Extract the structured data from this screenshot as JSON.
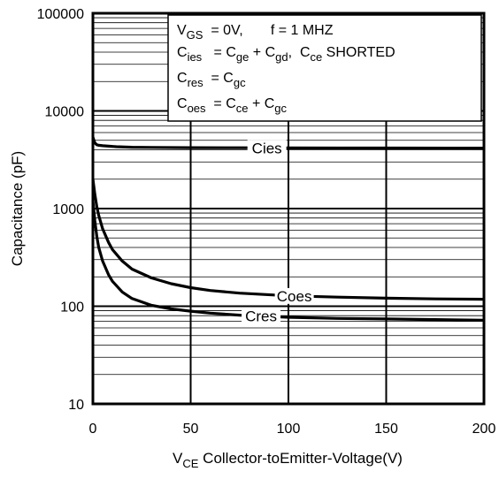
{
  "chart_data": {
    "type": "line",
    "title": "",
    "xlabel": {
      "main": "V",
      "sub": "CE",
      "rest": " Collector-toEmitter-Voltage(V)"
    },
    "ylabel": "Capacitance (pF)",
    "xlim": [
      0,
      200
    ],
    "ylim": [
      10,
      100000
    ],
    "yscale": "log",
    "grid": true,
    "x_ticks": [
      0,
      50,
      100,
      150,
      200
    ],
    "x_tick_labels": [
      "0",
      "50",
      "100",
      "150",
      "200"
    ],
    "y_ticks": [
      10,
      100,
      1000,
      10000,
      100000
    ],
    "y_tick_labels": [
      "10",
      "100",
      "1000",
      "10000",
      "100000"
    ],
    "legend_position": "top-right",
    "legend_box": [
      [
        {
          "t": "V"
        },
        {
          "t": "GS",
          "sub": true
        },
        {
          "t": "  = 0V,       f = 1 MHZ"
        }
      ],
      [
        {
          "t": "C"
        },
        {
          "t": "ies",
          "sub": true
        },
        {
          "t": "   = C"
        },
        {
          "t": "ge",
          "sub": true
        },
        {
          "t": " + C"
        },
        {
          "t": "gd",
          "sub": true
        },
        {
          "t": ",  C"
        },
        {
          "t": "ce",
          "sub": true
        },
        {
          "t": " SHORTED"
        }
      ],
      [
        {
          "t": "C"
        },
        {
          "t": "res",
          "sub": true
        },
        {
          "t": "  = C"
        },
        {
          "t": "gc",
          "sub": true
        }
      ],
      [
        {
          "t": "C"
        },
        {
          "t": "oes",
          "sub": true
        },
        {
          "t": "  = C"
        },
        {
          "t": "ce",
          "sub": true
        },
        {
          "t": " + C"
        },
        {
          "t": "gc",
          "sub": true
        }
      ]
    ],
    "series": [
      {
        "name": "Cies",
        "label_at_x": 89,
        "x": [
          0,
          1,
          2,
          3,
          5,
          8,
          12,
          20,
          30,
          50,
          75,
          100,
          150,
          200
        ],
        "values": [
          5400,
          4700,
          4500,
          4450,
          4400,
          4350,
          4300,
          4250,
          4230,
          4200,
          4190,
          4180,
          4170,
          4160
        ]
      },
      {
        "name": "Coes",
        "label_at_x": 103,
        "x": [
          0,
          1,
          2,
          3,
          5,
          8,
          10,
          15,
          20,
          30,
          40,
          50,
          60,
          75,
          100,
          125,
          150,
          175,
          200
        ],
        "values": [
          2000,
          1400,
          1050,
          850,
          620,
          450,
          380,
          290,
          240,
          195,
          170,
          155,
          145,
          136,
          128,
          124,
          121,
          119,
          118
        ]
      },
      {
        "name": "Cres",
        "label_at_x": 86,
        "x": [
          0,
          1,
          2,
          3,
          5,
          8,
          10,
          15,
          20,
          30,
          40,
          50,
          60,
          75,
          100,
          125,
          150,
          175,
          200
        ],
        "values": [
          1200,
          750,
          520,
          400,
          290,
          210,
          180,
          140,
          120,
          102,
          94,
          89,
          85,
          81,
          77,
          75,
          74,
          73,
          72
        ]
      }
    ]
  }
}
